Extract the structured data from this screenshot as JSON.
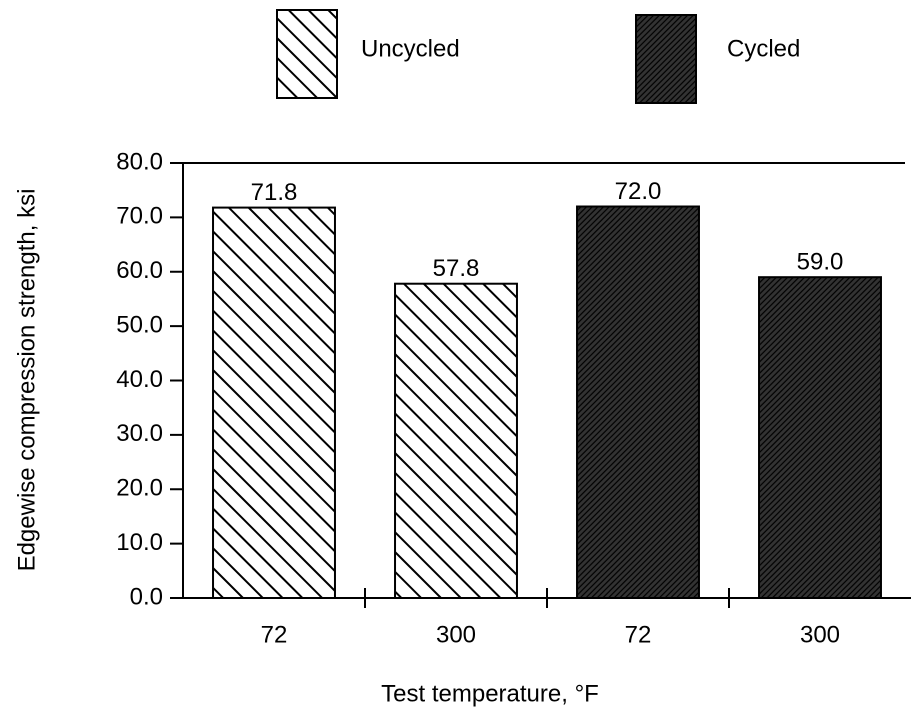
{
  "chart_data": {
    "type": "bar",
    "categories": [
      "72",
      "300",
      "72",
      "300"
    ],
    "series": [
      {
        "name": "Uncycled",
        "color": "#ffffff",
        "values": [
          71.8,
          57.8,
          null,
          null
        ],
        "value_labels": [
          "71.8",
          "57.8",
          null,
          null
        ]
      },
      {
        "name": "Cycled",
        "color": "#333333",
        "values": [
          null,
          null,
          72.0,
          59.0
        ],
        "value_labels": [
          null,
          null,
          "72.0",
          "59.0"
        ]
      }
    ],
    "xlabel": "Test temperature, °F",
    "ylabel": "Edgewise compression strength, ksi",
    "ylim": [
      0,
      80
    ],
    "yticks": [
      {
        "value": 0,
        "label": "0.0"
      },
      {
        "value": 10,
        "label": "10.0"
      },
      {
        "value": 20,
        "label": "20.0"
      },
      {
        "value": 30,
        "label": "30.0"
      },
      {
        "value": 40,
        "label": "40.0"
      },
      {
        "value": 50,
        "label": "50.0"
      },
      {
        "value": 60,
        "label": "60.0"
      },
      {
        "value": 70,
        "label": "70.0"
      },
      {
        "value": 80,
        "label": "80.0"
      }
    ],
    "legend": "top"
  }
}
